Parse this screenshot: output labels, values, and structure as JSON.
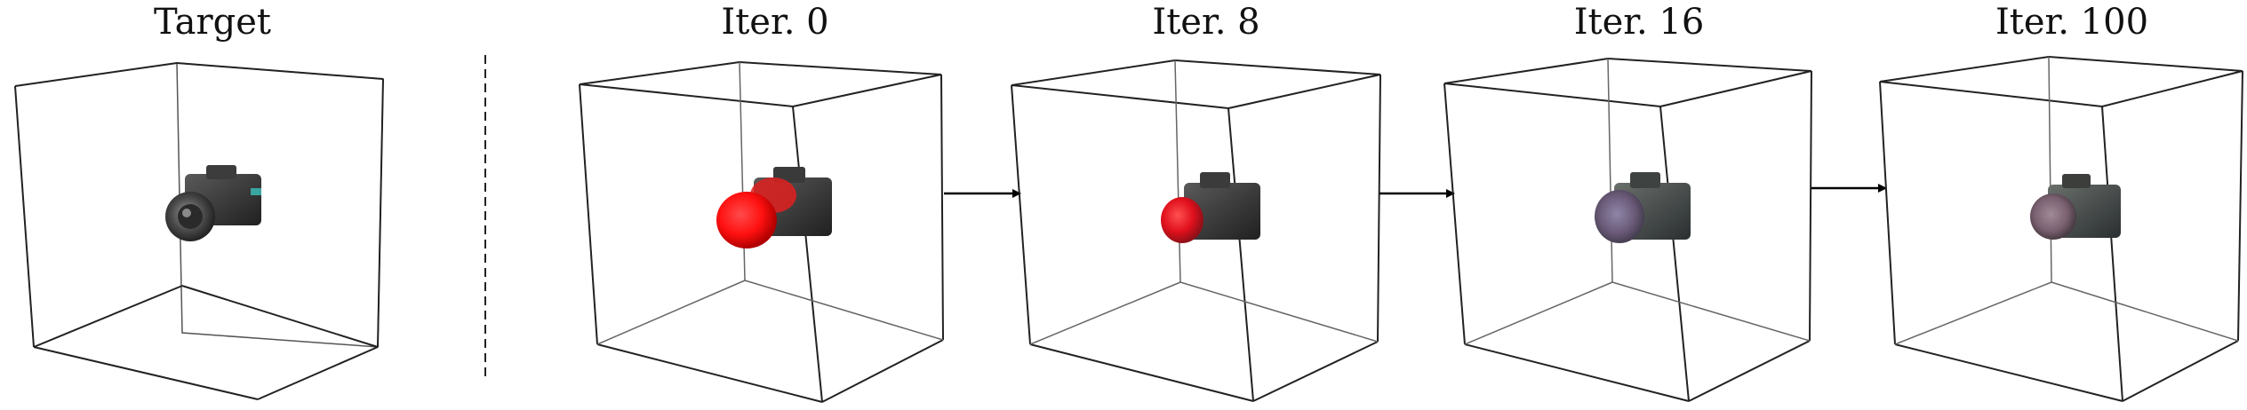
{
  "panels": [
    {
      "label": "Target"
    },
    {
      "label": "Iter. 0"
    },
    {
      "label": "Iter. 8"
    },
    {
      "label": "Iter. 16"
    },
    {
      "label": "Iter. 100"
    }
  ],
  "colors": {
    "box_edge": "#222222",
    "arrow": "#000000",
    "target_camera": "#3a3a3a",
    "iter0_lens": "#ff1a1a",
    "iter8_lens": "#e0202a",
    "iter16_lens": "#7a6a88",
    "iter100_lens": "#8a7080",
    "camera_body": "#3b3b3b"
  }
}
